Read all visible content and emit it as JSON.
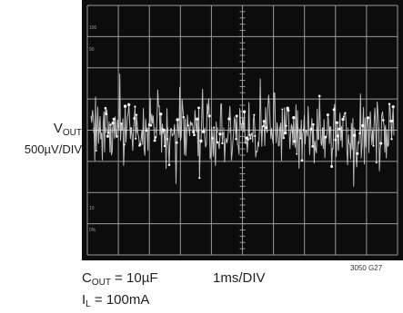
{
  "chart_data": {
    "type": "line",
    "y_label": {
      "symbol": "V",
      "subscript": "OUT",
      "scale": "500µV/DIV"
    },
    "x_label": "1ms/DIV",
    "figure_id": "3050 G27",
    "conditions": [
      {
        "symbol": "C",
        "subscript": "OUT",
        "value": " = 10µF"
      },
      {
        "symbol": "I",
        "subscript": "L",
        "value": " = 100mA"
      }
    ],
    "divisions": {
      "x": 10,
      "y": 8
    },
    "graticule_marks": [
      "100",
      "90",
      "10",
      "0%"
    ],
    "noise": {
      "unit": "µV",
      "peak_to_peak_approx": 1800,
      "rms_approx": 300,
      "samples": 400
    },
    "colors": {
      "screen": "#0c0c0c",
      "grid": "#9a9a9a",
      "trace": "#e8e8e8"
    }
  }
}
